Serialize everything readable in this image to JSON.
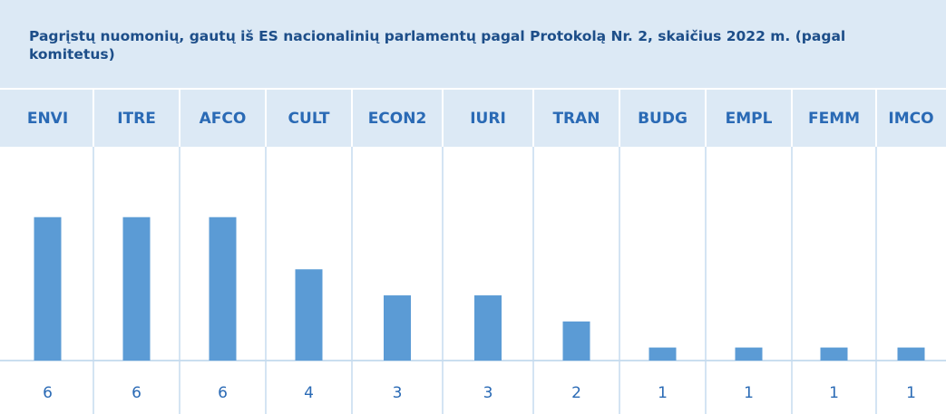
{
  "chart_data": {
    "type": "bar",
    "title": "Pagrįstų nuomonių, gautų iš ES nacionalinių parlamentų pagal Protokolą Nr. 2, skaičius 2022 m. (pagal komitetus)",
    "categories": [
      "ENVI",
      "ITRE",
      "AFCO",
      "CULT",
      "ECON2",
      "IURI",
      "TRAN",
      "BUDG",
      "EMPL",
      "FEMM",
      "IMCO"
    ],
    "values": [
      6,
      6,
      6,
      4,
      3,
      3,
      2,
      1,
      1,
      1,
      1
    ],
    "color": "#5b9bd5",
    "ylim": [
      0.5,
      8.7
    ]
  }
}
